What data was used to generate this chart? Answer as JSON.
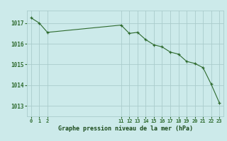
{
  "x": [
    0,
    1,
    2,
    11,
    12,
    13,
    14,
    15,
    16,
    17,
    18,
    19,
    20,
    21,
    22,
    23
  ],
  "y": [
    1017.25,
    1017.0,
    1016.55,
    1016.9,
    1016.5,
    1016.55,
    1016.2,
    1015.95,
    1015.85,
    1015.6,
    1015.5,
    1015.15,
    1015.05,
    1014.85,
    1014.05,
    1013.15
  ],
  "xticks": [
    0,
    1,
    2,
    11,
    12,
    13,
    14,
    15,
    16,
    17,
    18,
    19,
    20,
    21,
    22,
    23
  ],
  "xtick_labels": [
    "0",
    "1",
    "2",
    "11",
    "12",
    "13",
    "14",
    "15",
    "16",
    "17",
    "18",
    "19",
    "20",
    "21",
    "22",
    "23"
  ],
  "yticks": [
    1013,
    1014,
    1015,
    1016,
    1017
  ],
  "ylim": [
    1012.5,
    1017.6
  ],
  "xlim": [
    -0.5,
    23.5
  ],
  "line_color": "#2d6a2d",
  "marker_color": "#2d6a2d",
  "bg_color": "#cceaea",
  "grid_color": "#aacccc",
  "xlabel": "Graphe pression niveau de la mer (hPa)",
  "xlabel_color": "#1a4a1a",
  "title": ""
}
